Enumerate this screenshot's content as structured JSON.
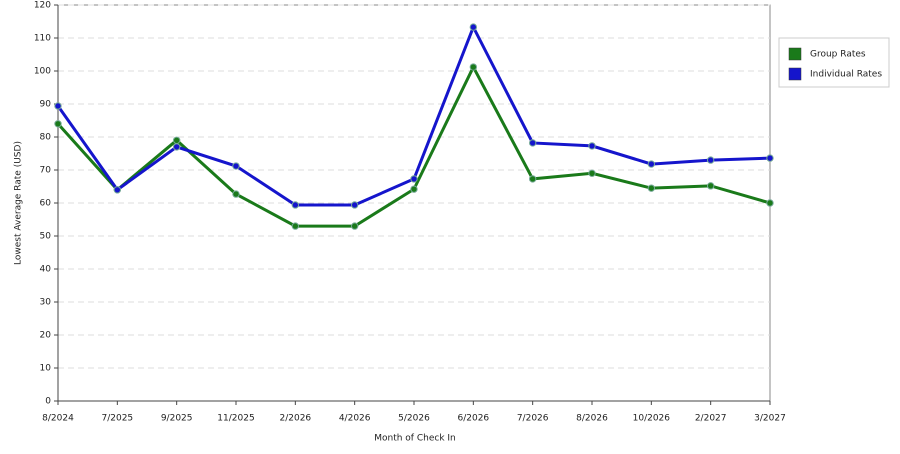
{
  "chart_data": {
    "type": "line",
    "x_label": "Month of Check In",
    "y_label": "Lowest Average Rate (USD)",
    "categories": [
      "8/2024",
      "7/2025",
      "9/2025",
      "11/2025",
      "2/2026",
      "4/2026",
      "5/2026",
      "6/2026",
      "7/2026",
      "8/2026",
      "10/2026",
      "2/2027",
      "3/2027"
    ],
    "series": [
      {
        "name": "Group Rates",
        "color": "#1a7a1a",
        "values": [
          84,
          64,
          79,
          62.7,
          53,
          53,
          64.2,
          101.2,
          67.3,
          69,
          64.5,
          65.2,
          60
        ]
      },
      {
        "name": "Individual Rates",
        "color": "#1515cc",
        "values": [
          89.4,
          64,
          77,
          71.2,
          59.4,
          59.4,
          67.3,
          113.3,
          78.2,
          77.3,
          71.8,
          73,
          73.6
        ]
      }
    ],
    "ylim": [
      0,
      120
    ],
    "yticks": [
      0,
      10,
      20,
      30,
      40,
      50,
      60,
      70,
      80,
      90,
      100,
      110,
      120
    ],
    "grid": true,
    "legend": "right"
  }
}
